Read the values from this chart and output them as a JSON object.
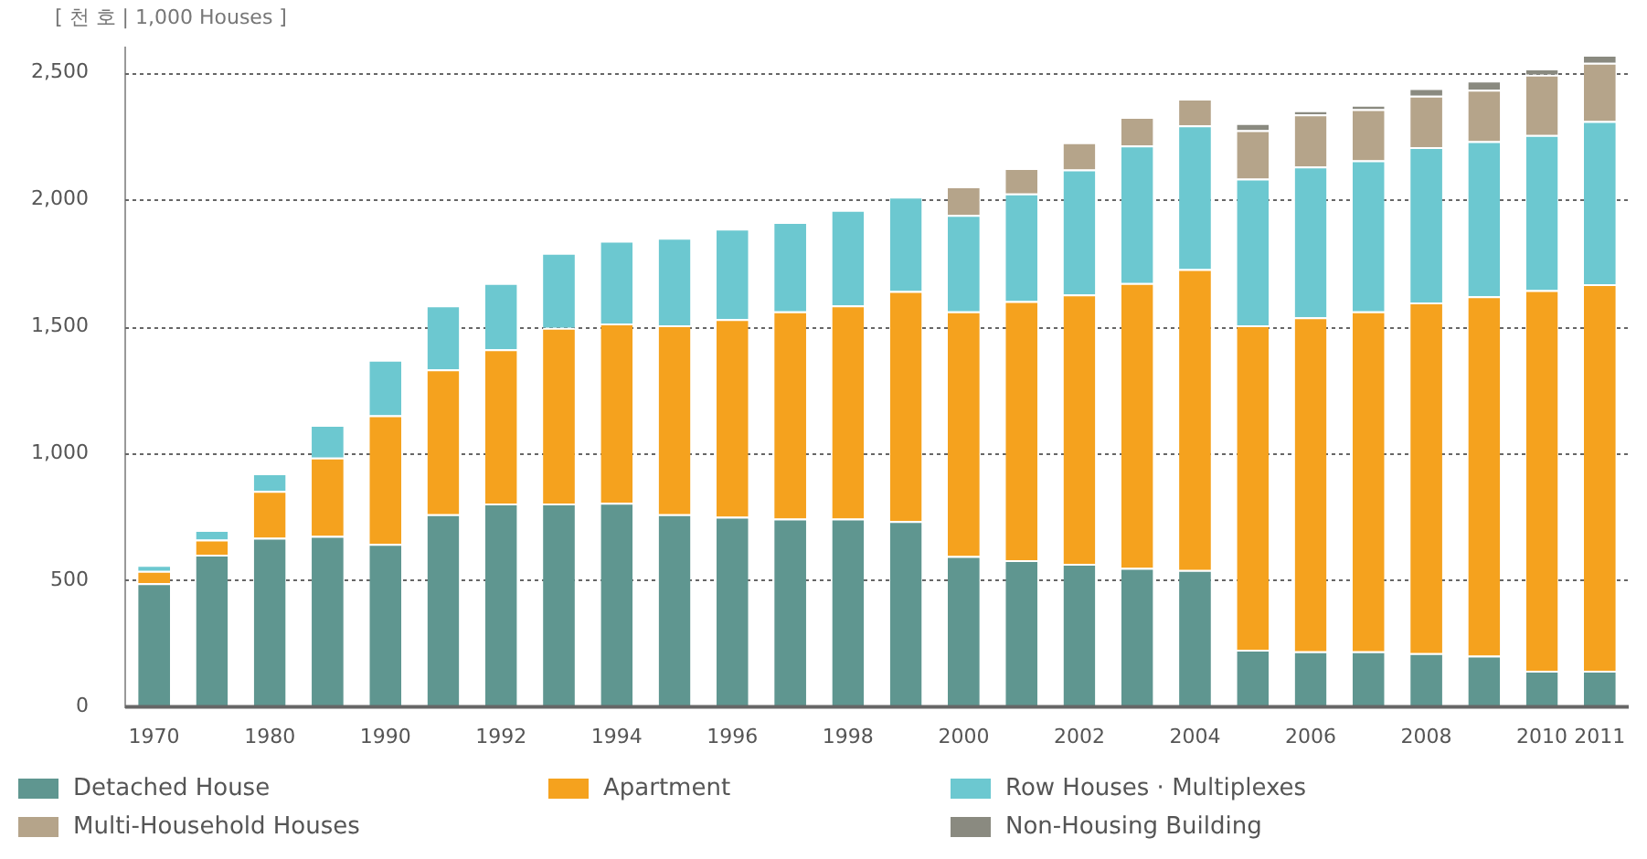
{
  "chart_data": {
    "type": "bar",
    "stacked": true,
    "ylabel": "[ 천 호 | 1,000 Houses ]",
    "categories": [
      "1970",
      null,
      "1980",
      null,
      "1990",
      null,
      "1992",
      null,
      "1994",
      null,
      "1996",
      null,
      "1998",
      null,
      "2000",
      null,
      "2002",
      null,
      "2004",
      null,
      "2006",
      null,
      "2008",
      null,
      "2010",
      "2011"
    ],
    "series": [
      {
        "name": "Detached House",
        "color": "#5f9690",
        "values": [
          488,
          600,
          667,
          674,
          643,
          760,
          802,
          802,
          805,
          760,
          750,
          743,
          743,
          733,
          595,
          579,
          564,
          548,
          540,
          226,
          219,
          219,
          212,
          202,
          143,
          143
        ]
      },
      {
        "name": "Apartment",
        "color": "#f5a21e",
        "values": [
          48,
          60,
          185,
          309,
          507,
          571,
          608,
          693,
          707,
          745,
          779,
          817,
          840,
          907,
          965,
          1021,
          1062,
          1123,
          1186,
          1279,
          1317,
          1341,
          1383,
          1417,
          1500,
          1524
        ]
      },
      {
        "name": "Row Houses · Multiplexes",
        "color": "#6cc8d0",
        "values": [
          24,
          38,
          69,
          129,
          219,
          252,
          261,
          295,
          326,
          345,
          357,
          352,
          377,
          372,
          380,
          424,
          493,
          543,
          567,
          578,
          595,
          595,
          612,
          612,
          612,
          643
        ]
      },
      {
        "name": "Multi-Household Houses",
        "color": "#b5a48a",
        "values": [
          null,
          null,
          null,
          null,
          null,
          null,
          null,
          null,
          null,
          null,
          null,
          null,
          null,
          null,
          112,
          100,
          107,
          112,
          105,
          191,
          205,
          202,
          203,
          202,
          238,
          230
        ]
      },
      {
        "name": "Non-Housing Building",
        "color": "#8a8a80",
        "values": [
          null,
          null,
          null,
          null,
          null,
          null,
          null,
          null,
          null,
          null,
          null,
          null,
          null,
          null,
          null,
          null,
          null,
          null,
          null,
          28,
          16,
          17,
          30,
          36,
          24,
          31
        ]
      }
    ],
    "ylim": [
      0,
      2600
    ],
    "yticks": [
      0,
      500,
      {
        "value": 1000,
        "label": "1,000"
      },
      {
        "value": 1500,
        "label": "1,500"
      },
      {
        "value": 2000,
        "label": "2,000"
      },
      {
        "value": 2500,
        "label": "2,500"
      }
    ],
    "grid": "y",
    "legend": "bottom"
  }
}
